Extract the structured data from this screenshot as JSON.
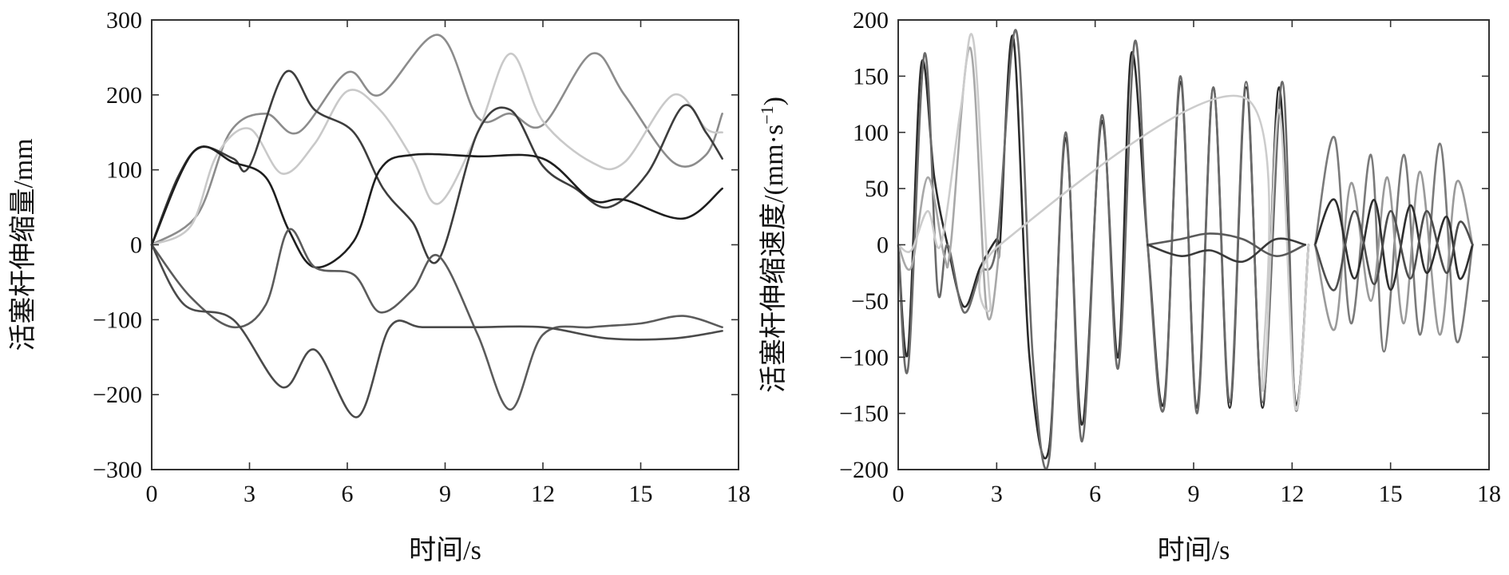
{
  "chart_data": [
    {
      "type": "line",
      "title": "",
      "xlabel": "时间/s",
      "ylabel": "活塞杆伸缩量/mm",
      "xlim": [
        0,
        18
      ],
      "ylim": [
        -300,
        300
      ],
      "xticks": [
        "0",
        "3",
        "6",
        "9",
        "12",
        "15",
        "18"
      ],
      "yticks": [
        "−300",
        "−200",
        "−100",
        "0",
        "100",
        "200",
        "300"
      ],
      "grid": false,
      "legend": "none",
      "series": [
        {
          "color": "#8c8c8c",
          "points": [
            [
              0,
              0
            ],
            [
              1.4,
              40
            ],
            [
              2.4,
              150
            ],
            [
              3.5,
              175
            ],
            [
              4.5,
              150
            ],
            [
              6,
              230
            ],
            [
              7,
              200
            ],
            [
              8.8,
              280
            ],
            [
              10,
              170
            ],
            [
              11,
              175
            ],
            [
              12,
              160
            ],
            [
              13.5,
              255
            ],
            [
              14.5,
              200
            ],
            [
              16,
              110
            ],
            [
              17,
              120
            ],
            [
              17.5,
              175
            ]
          ]
        },
        {
          "color": "#c9c9c9",
          "points": [
            [
              0,
              0
            ],
            [
              1.2,
              25
            ],
            [
              2,
              120
            ],
            [
              3,
              155
            ],
            [
              4,
              95
            ],
            [
              5,
              135
            ],
            [
              6,
              205
            ],
            [
              7,
              180
            ],
            [
              8,
              115
            ],
            [
              8.8,
              55
            ],
            [
              10,
              150
            ],
            [
              11,
              255
            ],
            [
              12,
              165
            ],
            [
              13.5,
              110
            ],
            [
              14.5,
              110
            ],
            [
              16,
              200
            ],
            [
              17,
              155
            ],
            [
              17.5,
              150
            ]
          ]
        },
        {
          "color": "#3d3d3d",
          "points": [
            [
              0,
              0
            ],
            [
              0.8,
              90
            ],
            [
              1.5,
              130
            ],
            [
              2.5,
              115
            ],
            [
              3,
              105
            ],
            [
              4.1,
              230
            ],
            [
              5,
              180
            ],
            [
              6.2,
              150
            ],
            [
              7.1,
              75
            ],
            [
              8,
              30
            ],
            [
              8.8,
              -20
            ],
            [
              10,
              150
            ],
            [
              11,
              180
            ],
            [
              12,
              105
            ],
            [
              13,
              75
            ],
            [
              14,
              50
            ],
            [
              15.2,
              95
            ],
            [
              16.3,
              185
            ],
            [
              17,
              150
            ],
            [
              17.5,
              115
            ]
          ]
        },
        {
          "color": "#1e1e1e",
          "points": [
            [
              0,
              0
            ],
            [
              1.3,
              125
            ],
            [
              2.5,
              110
            ],
            [
              3.5,
              90
            ],
            [
              4.2,
              20
            ],
            [
              5,
              -30
            ],
            [
              6.2,
              5
            ],
            [
              7,
              100
            ],
            [
              8,
              120
            ],
            [
              10,
              118
            ],
            [
              12,
              115
            ],
            [
              13.5,
              60
            ],
            [
              14.5,
              60
            ],
            [
              16.3,
              35
            ],
            [
              17.5,
              75
            ]
          ]
        },
        {
          "color": "#5b5b5b",
          "points": [
            [
              0,
              0
            ],
            [
              1.2,
              -70
            ],
            [
              2.5,
              -110
            ],
            [
              3.5,
              -80
            ],
            [
              4.2,
              20
            ],
            [
              5,
              -30
            ],
            [
              6.2,
              -40
            ],
            [
              7,
              -90
            ],
            [
              8,
              -60
            ],
            [
              8.8,
              -15
            ],
            [
              10,
              -120
            ],
            [
              11,
              -220
            ],
            [
              12,
              -120
            ],
            [
              13.5,
              -110
            ],
            [
              15,
              -105
            ],
            [
              16.3,
              -95
            ],
            [
              17.5,
              -110
            ]
          ]
        },
        {
          "color": "#4a4a4a",
          "points": [
            [
              0,
              0
            ],
            [
              1,
              -80
            ],
            [
              2.5,
              -100
            ],
            [
              4,
              -190
            ],
            [
              5,
              -140
            ],
            [
              6.3,
              -230
            ],
            [
              7.3,
              -110
            ],
            [
              8.3,
              -110
            ],
            [
              10,
              -110
            ],
            [
              12,
              -110
            ],
            [
              14,
              -125
            ],
            [
              16,
              -125
            ],
            [
              17.5,
              -115
            ]
          ]
        }
      ]
    },
    {
      "type": "line",
      "title": "",
      "xlabel": "时间/s",
      "ylabel": "活塞杆伸缩速度/(mm·s",
      "ylabel_sup": "−1",
      "ylabel_end": ")",
      "xlim": [
        0,
        18
      ],
      "ylim": [
        -200,
        200
      ],
      "xticks": [
        "0",
        "3",
        "6",
        "9",
        "12",
        "15",
        "18"
      ],
      "yticks": [
        "−200",
        "−150",
        "−100",
        "−50",
        "0",
        "50",
        "100",
        "150",
        "200"
      ],
      "grid": false,
      "legend": "none",
      "series": [
        {
          "color": "#2b2b2b",
          "points": [
            [
              0,
              0
            ],
            [
              0.3,
              -95
            ],
            [
              0.7,
              160
            ],
            [
              1.1,
              60
            ],
            [
              1.5,
              0
            ],
            [
              2,
              -55
            ],
            [
              2.5,
              -20
            ],
            [
              3,
              5
            ],
            [
              3.1,
              0
            ],
            [
              3.5,
              185
            ],
            [
              4,
              -100
            ],
            [
              4.6,
              -180
            ],
            [
              5.1,
              95
            ],
            [
              5.6,
              -160
            ],
            [
              6.2,
              110
            ],
            [
              6.7,
              -100
            ],
            [
              7.1,
              170
            ],
            [
              7.6,
              0
            ],
            [
              8.1,
              -140
            ],
            [
              8.6,
              145
            ],
            [
              9.1,
              -145
            ],
            [
              9.6,
              140
            ],
            [
              10.1,
              -145
            ],
            [
              10.6,
              140
            ],
            [
              11.1,
              -145
            ],
            [
              11.6,
              140
            ],
            [
              12.1,
              -140
            ],
            [
              12.5,
              0
            ]
          ]
        },
        {
          "color": "#6a6a6a",
          "points": [
            [
              0,
              0
            ],
            [
              0.3,
              -110
            ],
            [
              0.8,
              170
            ],
            [
              1.2,
              -40
            ],
            [
              1.5,
              0
            ],
            [
              2,
              -60
            ],
            [
              2.5,
              -25
            ],
            [
              3,
              0
            ],
            [
              3.6,
              190
            ],
            [
              4.1,
              -100
            ],
            [
              4.6,
              -190
            ],
            [
              5.1,
              100
            ],
            [
              5.6,
              -175
            ],
            [
              6.2,
              115
            ],
            [
              6.7,
              -110
            ],
            [
              7.2,
              180
            ],
            [
              7.6,
              0
            ],
            [
              8.1,
              -145
            ],
            [
              8.6,
              150
            ],
            [
              9.1,
              -150
            ],
            [
              9.6,
              140
            ],
            [
              10.1,
              -140
            ],
            [
              10.6,
              145
            ],
            [
              11.1,
              -140
            ],
            [
              11.7,
              145
            ],
            [
              12.1,
              -145
            ],
            [
              12.5,
              0
            ]
          ]
        },
        {
          "color": "#a8a8a8",
          "points": [
            [
              0,
              0
            ],
            [
              0.4,
              -20
            ],
            [
              0.9,
              60
            ],
            [
              1.4,
              -10
            ],
            [
              1.6,
              0
            ],
            [
              2.2,
              175
            ],
            [
              2.7,
              -60
            ],
            [
              3.1,
              0
            ]
          ]
        },
        {
          "color": "#cccccc",
          "points": [
            [
              0,
              0
            ],
            [
              0.4,
              -5
            ],
            [
              0.9,
              30
            ],
            [
              1.3,
              0
            ],
            [
              1.9,
              120
            ],
            [
              2.3,
              180
            ],
            [
              2.8,
              -50
            ],
            [
              3.1,
              0
            ],
            [
              10.6,
              130
            ],
            [
              11.1,
              -130
            ],
            [
              11.6,
              120
            ],
            [
              12.1,
              -145
            ],
            [
              12.5,
              0
            ]
          ]
        },
        {
          "color": "#5a5a5a",
          "points": [
            [
              7.6,
              0
            ],
            [
              8.6,
              5
            ],
            [
              9.5,
              10
            ],
            [
              10.5,
              5
            ],
            [
              11.5,
              -10
            ],
            [
              12.4,
              0
            ]
          ]
        },
        {
          "color": "#3a3a3a",
          "points": [
            [
              7.6,
              0
            ],
            [
              8.6,
              -10
            ],
            [
              9.5,
              -5
            ],
            [
              10.5,
              -15
            ],
            [
              11.5,
              5
            ],
            [
              12.4,
              0
            ]
          ]
        },
        {
          "color": "#7a7a7a",
          "points": [
            [
              12.7,
              0
            ],
            [
              13.3,
              95
            ],
            [
              13.8,
              -70
            ],
            [
              14.4,
              80
            ],
            [
              14.8,
              -95
            ],
            [
              15.4,
              80
            ],
            [
              15.9,
              -80
            ],
            [
              16.5,
              90
            ],
            [
              17,
              -85
            ],
            [
              17.5,
              0
            ]
          ]
        },
        {
          "color": "#9a9a9a",
          "points": [
            [
              12.7,
              0
            ],
            [
              13.3,
              -75
            ],
            [
              13.8,
              55
            ],
            [
              14.4,
              -50
            ],
            [
              14.9,
              60
            ],
            [
              15.4,
              -70
            ],
            [
              15.9,
              65
            ],
            [
              16.5,
              -80
            ],
            [
              17,
              55
            ],
            [
              17.5,
              0
            ]
          ]
        },
        {
          "color": "#2e2e2e",
          "points": [
            [
              12.7,
              0
            ],
            [
              13.3,
              40
            ],
            [
              13.9,
              -30
            ],
            [
              14.5,
              40
            ],
            [
              15,
              -40
            ],
            [
              15.6,
              35
            ],
            [
              16.1,
              -25
            ],
            [
              16.7,
              25
            ],
            [
              17.1,
              -30
            ],
            [
              17.5,
              0
            ]
          ]
        },
        {
          "color": "#4e4e4e",
          "points": [
            [
              12.7,
              0
            ],
            [
              13.3,
              -40
            ],
            [
              13.9,
              30
            ],
            [
              14.5,
              -35
            ],
            [
              15,
              30
            ],
            [
              15.6,
              -30
            ],
            [
              16.1,
              30
            ],
            [
              16.7,
              -25
            ],
            [
              17.1,
              20
            ],
            [
              17.5,
              0
            ]
          ]
        }
      ]
    }
  ]
}
